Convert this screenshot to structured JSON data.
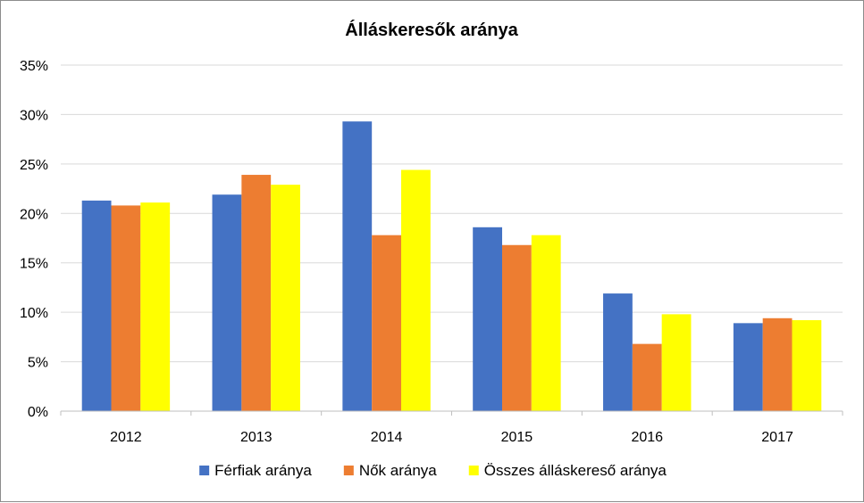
{
  "chart_data": {
    "type": "bar",
    "title": "Álláskeresők aránya",
    "categories": [
      "2012",
      "2013",
      "2014",
      "2015",
      "2016",
      "2017"
    ],
    "series": [
      {
        "name": "Férfiak aránya",
        "color": "#4472C4",
        "values": [
          21.3,
          21.9,
          29.3,
          18.6,
          11.9,
          8.9
        ]
      },
      {
        "name": "Nők aránya",
        "color": "#ED7D31",
        "values": [
          20.8,
          23.9,
          17.8,
          16.8,
          6.8,
          9.4
        ]
      },
      {
        "name": "Összes álláskereső aránya",
        "color": "#FFFF00",
        "values": [
          21.1,
          22.9,
          24.4,
          17.8,
          9.8,
          9.2
        ]
      }
    ],
    "y_ticks": [
      "0%",
      "5%",
      "10%",
      "15%",
      "20%",
      "25%",
      "30%",
      "35%"
    ],
    "ylim": [
      0,
      35
    ],
    "y_unit": "percent",
    "grid": true,
    "legend_position": "bottom",
    "gridline_color": "#d9d9d9",
    "axis_color": "#bfbfbf"
  }
}
